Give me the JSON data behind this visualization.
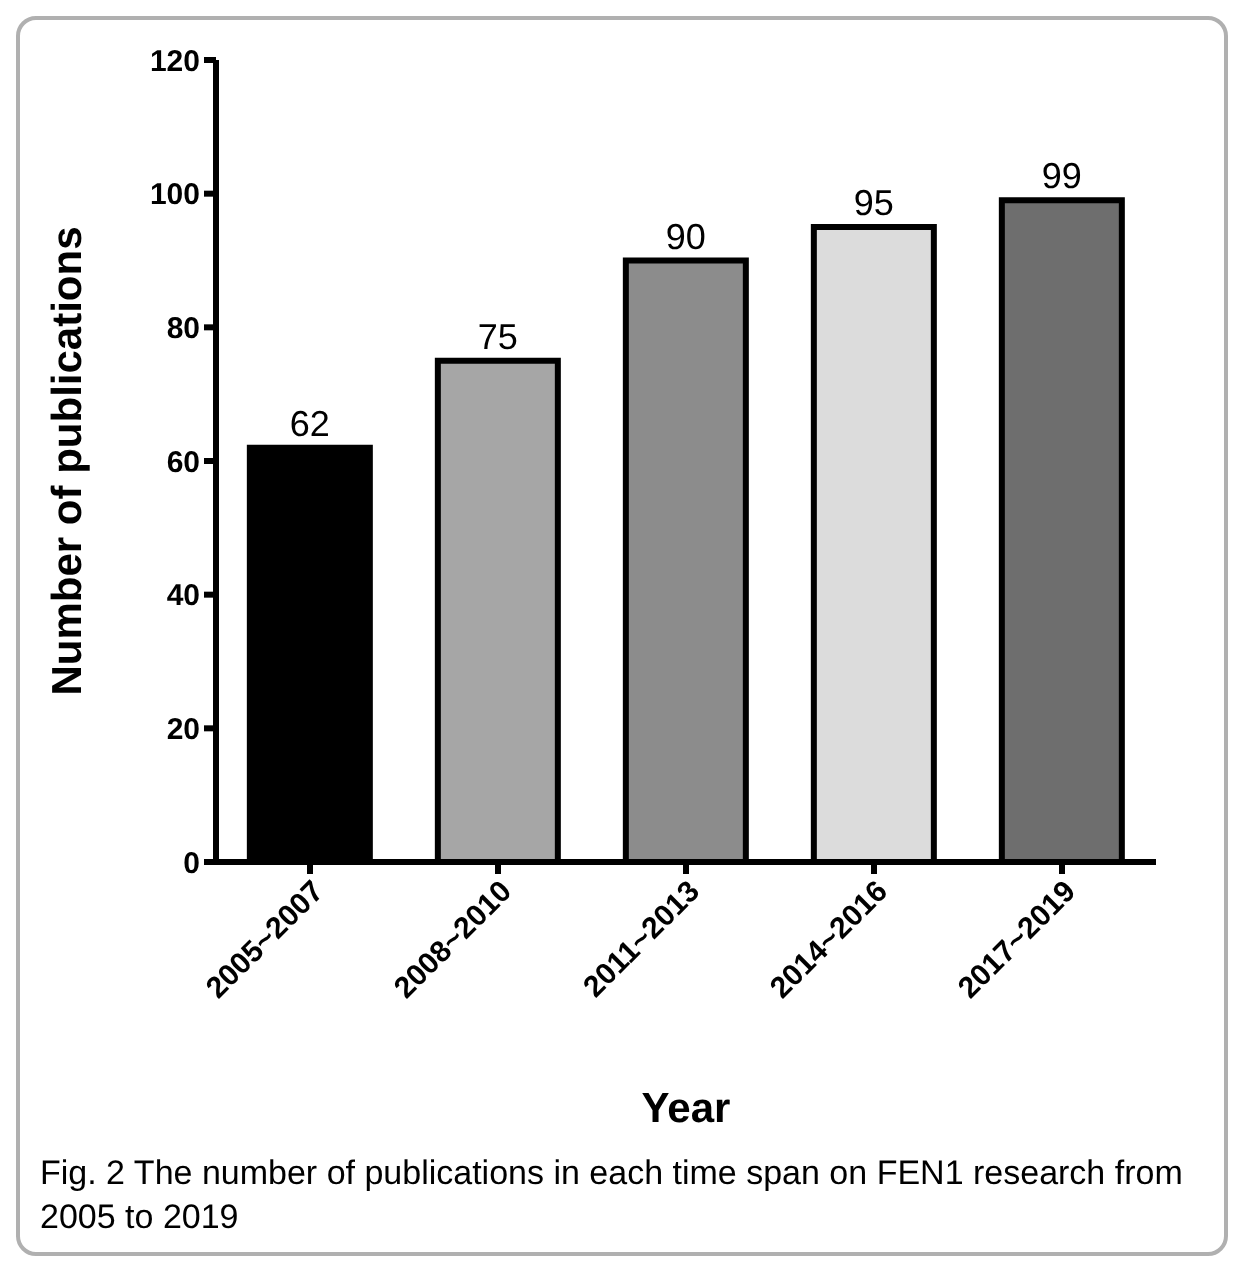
{
  "chart_data": {
    "type": "bar",
    "xlabel": "Year",
    "ylabel": "Number of publications",
    "categories": [
      "2005~2007",
      "2008~2010",
      "2011~2013",
      "2014~2016",
      "2017~2019"
    ],
    "values": [
      62,
      75,
      90,
      95,
      99
    ],
    "colors": [
      "#000000",
      "#a6a6a6",
      "#8c8c8c",
      "#dcdcdc",
      "#6e6e6e"
    ],
    "ylim": [
      0,
      120
    ],
    "yticks": [
      0,
      20,
      40,
      60,
      80,
      100,
      120
    ],
    "grid": false,
    "legend": false,
    "data_labels": true,
    "annotations": [
      "Fig. 2 The number of publications in each time span on FEN1 research from 2005 to 2019"
    ]
  }
}
